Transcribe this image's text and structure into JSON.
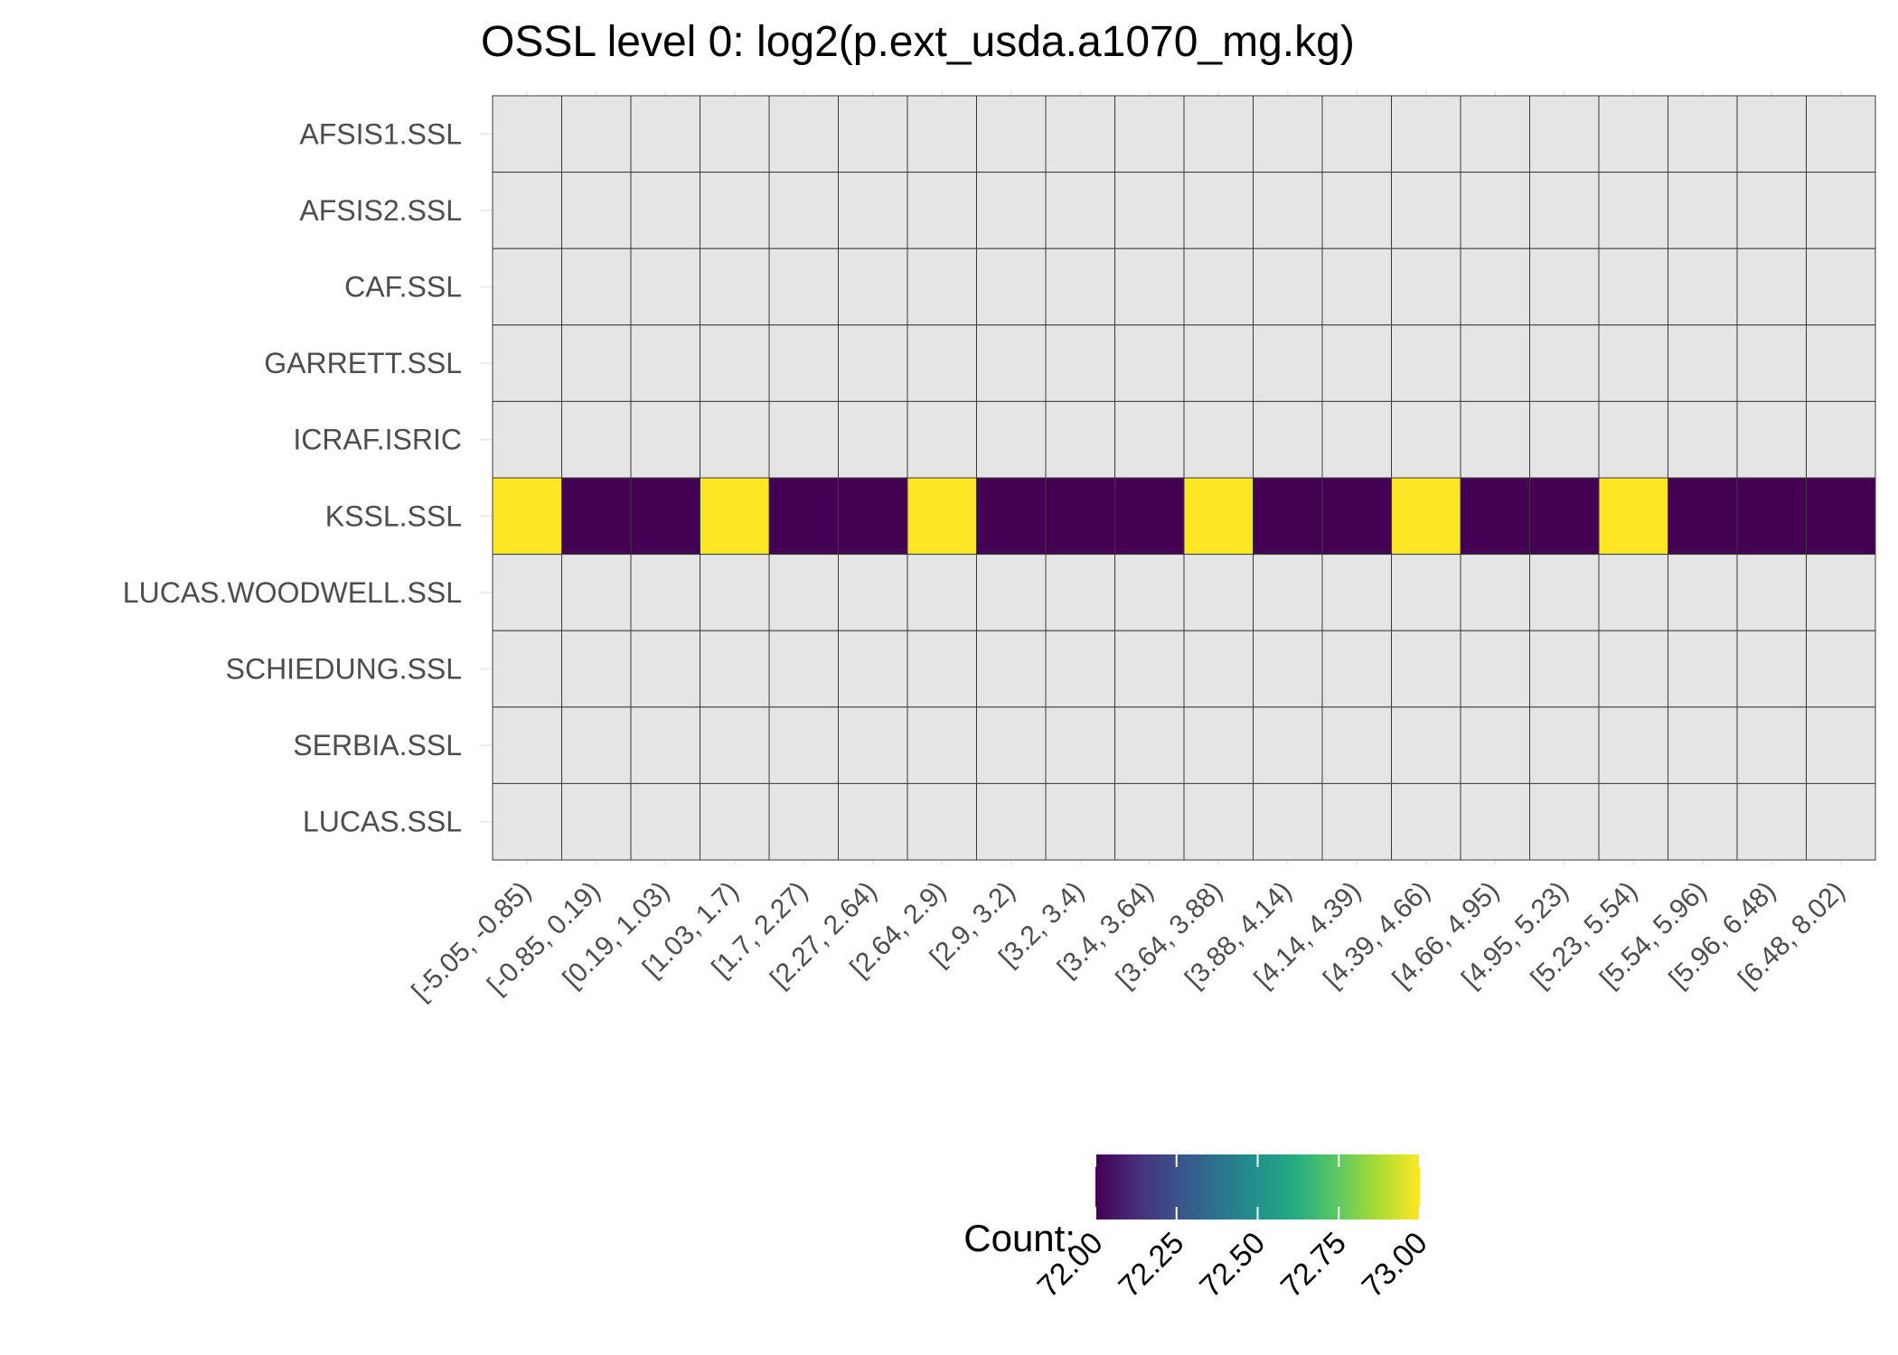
{
  "chart_data": {
    "type": "heatmap",
    "title": "OSSL level 0: log2(p.ext_usda.a1070_mg.kg)",
    "xlabel": "",
    "ylabel": "",
    "x_categories": [
      "[-5.05, -0.85)",
      "[-0.85, 0.19)",
      "[0.19, 1.03)",
      "[1.03, 1.7)",
      "[1.7, 2.27)",
      "[2.27, 2.64)",
      "[2.64, 2.9)",
      "[2.9, 3.2)",
      "[3.2, 3.4)",
      "[3.4, 3.64)",
      "[3.64, 3.88)",
      "[3.88, 4.14)",
      "[4.14, 4.39)",
      "[4.39, 4.66)",
      "[4.66, 4.95)",
      "[4.95, 5.23)",
      "[5.23, 5.54)",
      "[5.54, 5.96)",
      "[5.96, 6.48)",
      "[6.48, 8.02)"
    ],
    "y_categories": [
      "AFSIS1.SSL",
      "AFSIS2.SSL",
      "CAF.SSL",
      "GARRETT.SSL",
      "ICRAF.ISRIC",
      "KSSL.SSL",
      "LUCAS.WOODWELL.SSL",
      "SCHIEDUNG.SSL",
      "SERBIA.SSL",
      "LUCAS.SSL"
    ],
    "rows": [
      {
        "dataset": "AFSIS1.SSL",
        "values": [
          null,
          null,
          null,
          null,
          null,
          null,
          null,
          null,
          null,
          null,
          null,
          null,
          null,
          null,
          null,
          null,
          null,
          null,
          null,
          null
        ]
      },
      {
        "dataset": "AFSIS2.SSL",
        "values": [
          null,
          null,
          null,
          null,
          null,
          null,
          null,
          null,
          null,
          null,
          null,
          null,
          null,
          null,
          null,
          null,
          null,
          null,
          null,
          null
        ]
      },
      {
        "dataset": "CAF.SSL",
        "values": [
          null,
          null,
          null,
          null,
          null,
          null,
          null,
          null,
          null,
          null,
          null,
          null,
          null,
          null,
          null,
          null,
          null,
          null,
          null,
          null
        ]
      },
      {
        "dataset": "GARRETT.SSL",
        "values": [
          null,
          null,
          null,
          null,
          null,
          null,
          null,
          null,
          null,
          null,
          null,
          null,
          null,
          null,
          null,
          null,
          null,
          null,
          null,
          null
        ]
      },
      {
        "dataset": "ICRAF.ISRIC",
        "values": [
          null,
          null,
          null,
          null,
          null,
          null,
          null,
          null,
          null,
          null,
          null,
          null,
          null,
          null,
          null,
          null,
          null,
          null,
          null,
          null
        ]
      },
      {
        "dataset": "KSSL.SSL",
        "values": [
          73,
          72,
          72,
          73,
          72,
          72,
          73,
          72,
          72,
          72,
          73,
          72,
          72,
          73,
          72,
          72,
          73,
          72,
          72,
          72
        ]
      },
      {
        "dataset": "LUCAS.WOODWELL.SSL",
        "values": [
          null,
          null,
          null,
          null,
          null,
          null,
          null,
          null,
          null,
          null,
          null,
          null,
          null,
          null,
          null,
          null,
          null,
          null,
          null,
          null
        ]
      },
      {
        "dataset": "SCHIEDUNG.SSL",
        "values": [
          null,
          null,
          null,
          null,
          null,
          null,
          null,
          null,
          null,
          null,
          null,
          null,
          null,
          null,
          null,
          null,
          null,
          null,
          null,
          null
        ]
      },
      {
        "dataset": "SERBIA.SSL",
        "values": [
          null,
          null,
          null,
          null,
          null,
          null,
          null,
          null,
          null,
          null,
          null,
          null,
          null,
          null,
          null,
          null,
          null,
          null,
          null,
          null
        ]
      },
      {
        "dataset": "LUCAS.SSL",
        "values": [
          null,
          null,
          null,
          null,
          null,
          null,
          null,
          null,
          null,
          null,
          null,
          null,
          null,
          null,
          null,
          null,
          null,
          null,
          null,
          null
        ]
      }
    ],
    "legend": {
      "title": "Count:",
      "placement": "bottom",
      "range": [
        72.0,
        73.0
      ],
      "labels": [
        "72.00",
        "72.25",
        "72.50",
        "72.75",
        "73.00"
      ],
      "colormap": "viridis"
    },
    "colors": {
      "na": "#e5e5e5",
      "low": "#440154",
      "high": "#fde725",
      "tile_border": "#3a3a3a",
      "grid": "#ebebeb"
    }
  }
}
